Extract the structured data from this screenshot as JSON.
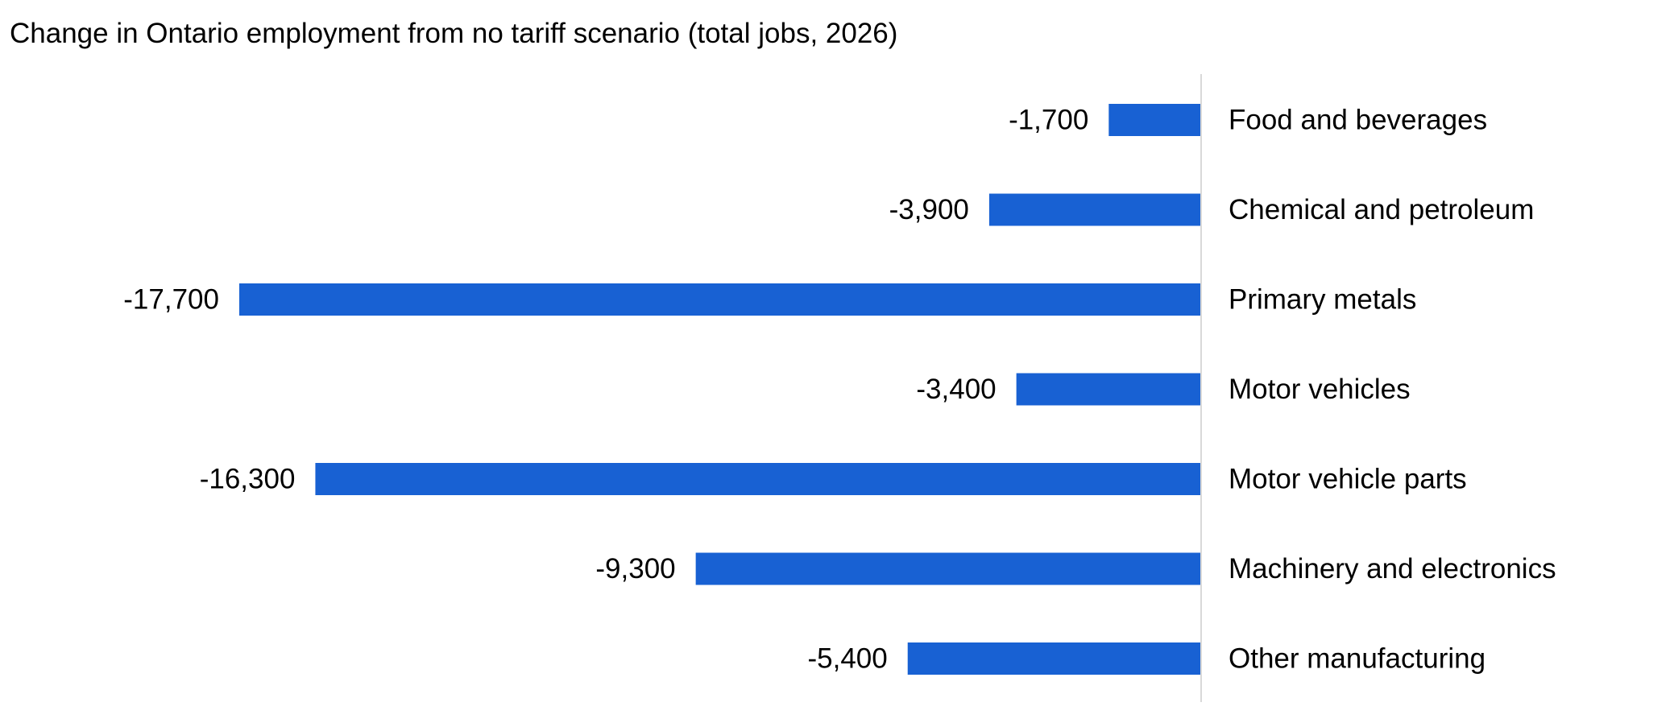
{
  "chart_data": {
    "type": "bar",
    "orientation": "horizontal",
    "title": "Change in Ontario employment from no tariff scenario (total jobs, 2026)",
    "categories": [
      "Food and beverages",
      "Chemical and petroleum",
      "Primary metals",
      "Motor vehicles",
      "Motor vehicle parts",
      "Machinery and electronics",
      "Other manufacturing"
    ],
    "values": [
      -1700,
      -3900,
      -17700,
      -3400,
      -16300,
      -9300,
      -5400
    ],
    "data_labels": [
      "-1,700",
      "-3,900",
      "-17,700",
      "-3,400",
      "-16,300",
      "-9,300",
      "-5,400"
    ],
    "xlim": [
      -17700,
      0
    ],
    "bar_color": "#1861d3",
    "axis_color": "#d9d9d9",
    "grid": false,
    "legend": "none",
    "category_label_position": "right-of-axis",
    "value_label_position": "left-of-bar"
  }
}
